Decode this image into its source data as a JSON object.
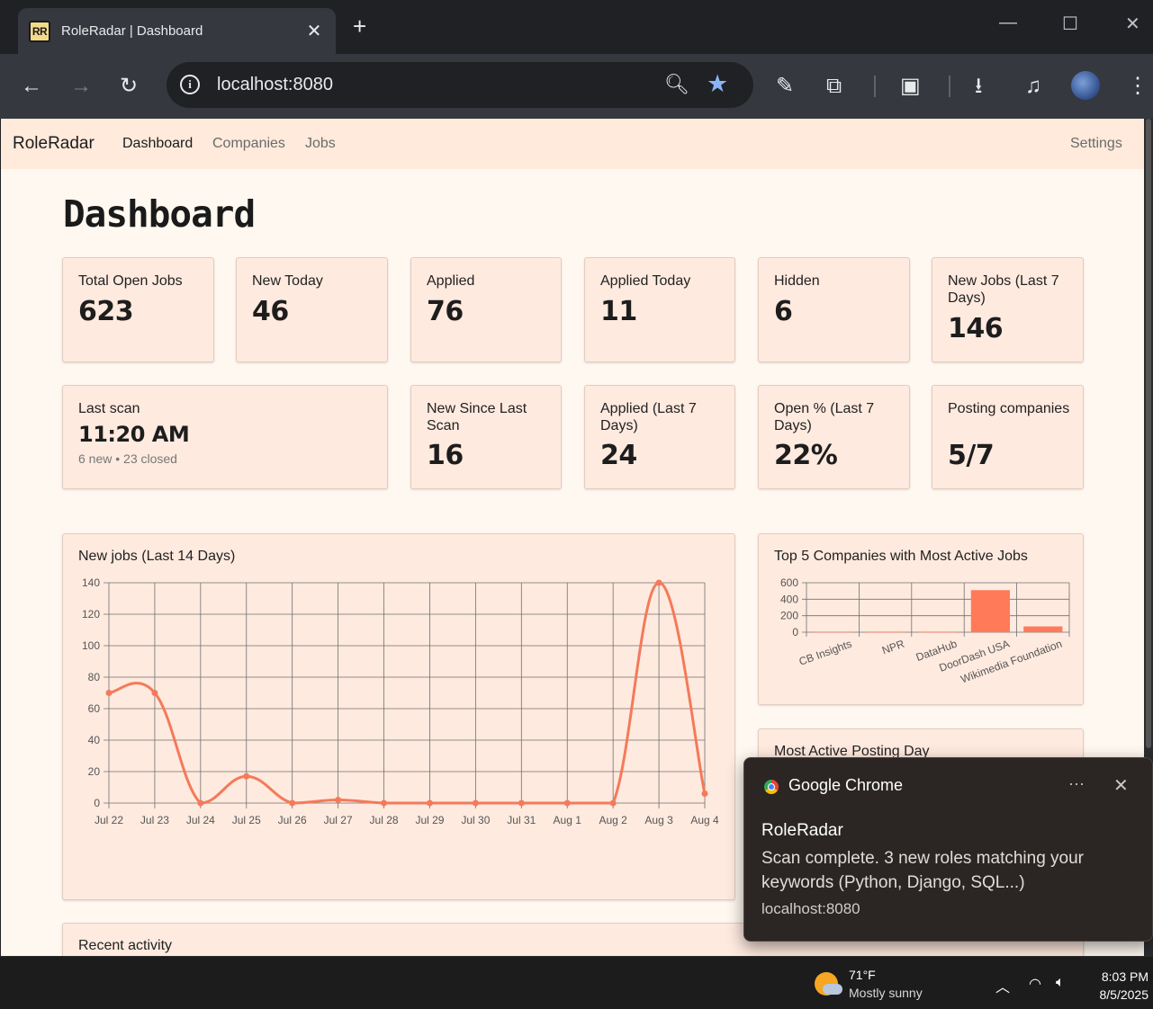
{
  "browser": {
    "tab_title": "RoleRadar | Dashboard",
    "favicon_text": "RR",
    "url": "localhost:8080"
  },
  "nav": {
    "brand": "RoleRadar",
    "links": [
      "Dashboard",
      "Companies",
      "Jobs"
    ],
    "settings": "Settings"
  },
  "page_title": "Dashboard",
  "stats_row1": [
    {
      "label": "Total Open Jobs",
      "value": "623"
    },
    {
      "label": "New Today",
      "value": "46"
    },
    {
      "label": "Applied",
      "value": "76"
    },
    {
      "label": "Applied Today",
      "value": "11"
    },
    {
      "label": "Hidden",
      "value": "6"
    },
    {
      "label": "New Jobs (Last 7 Days)",
      "value": "146"
    }
  ],
  "last_scan": {
    "label": "Last scan",
    "value": "11:20 AM",
    "sub": "6 new • 23 closed"
  },
  "stats_row2": [
    {
      "label": "New Since Last Scan",
      "value": "16"
    },
    {
      "label": "Applied (Last 7 Days)",
      "value": "24"
    },
    {
      "label": "Open % (Last 7 Days)",
      "value": "22%"
    },
    {
      "label": "Posting companies",
      "value": "5/7"
    }
  ],
  "line_panel_title": "New jobs (Last 14 Days)",
  "bar_panel_title": "Top 5 Companies with Most Active Jobs",
  "posting_day_title": "Most Active Posting Day",
  "recent_activity_title": "Recent activity",
  "chart_data": [
    {
      "type": "line",
      "title": "New jobs (Last 14 Days)",
      "x": [
        "Jul 22",
        "Jul 23",
        "Jul 24",
        "Jul 25",
        "Jul 26",
        "Jul 27",
        "Jul 28",
        "Jul 29",
        "Jul 30",
        "Jul 31",
        "Aug 1",
        "Aug 2",
        "Aug 3",
        "Aug 4"
      ],
      "values": [
        70,
        70,
        0,
        17,
        0,
        2,
        0,
        0,
        0,
        0,
        0,
        0,
        140,
        6
      ],
      "ylim": [
        0,
        140
      ],
      "yticks": [
        0,
        20,
        40,
        60,
        80,
        100,
        120,
        140
      ],
      "grid": true,
      "color": "#f47a5a"
    },
    {
      "type": "bar",
      "title": "Top 5 Companies with Most Active Jobs",
      "categories": [
        "CB Insights",
        "NPR",
        "DataHub",
        "DoorDash USA",
        "Wikimedia Foundation"
      ],
      "values": [
        3,
        2,
        2,
        510,
        70
      ],
      "ylim": [
        0,
        600
      ],
      "yticks": [
        0,
        200,
        400,
        600
      ],
      "grid": true,
      "color": "#ff7a59"
    }
  ],
  "notification": {
    "app": "Google Chrome",
    "title": "RoleRadar",
    "body": "Scan complete. 3 new roles matching your keywords (Python, Django, SQL...)",
    "source": "localhost:8080"
  },
  "taskbar": {
    "temperature": "71°F",
    "condition": "Mostly sunny",
    "time": "8:03 PM",
    "date": "8/5/2025"
  }
}
